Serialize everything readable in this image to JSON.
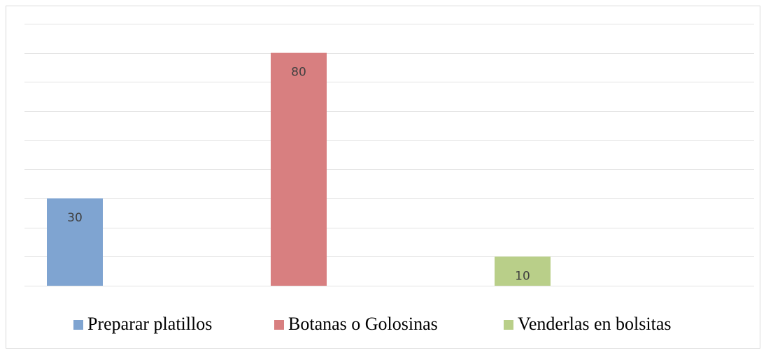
{
  "chart_data": {
    "type": "bar",
    "categories": [
      null
    ],
    "series": [
      {
        "name": "Preparar platillos",
        "color": "#7fa4d1",
        "values": [
          30
        ]
      },
      {
        "name": "Botanas o Golosinas",
        "color": "#d87f80",
        "values": [
          80
        ]
      },
      {
        "name": "Venderlas en bolsitas",
        "color": "#b9cf89",
        "values": [
          10
        ]
      }
    ],
    "ylim": [
      0,
      90
    ],
    "yticks": [
      0,
      10,
      20,
      30,
      40,
      50,
      60,
      70,
      80,
      90
    ],
    "grid": true,
    "legend": "bottom"
  }
}
